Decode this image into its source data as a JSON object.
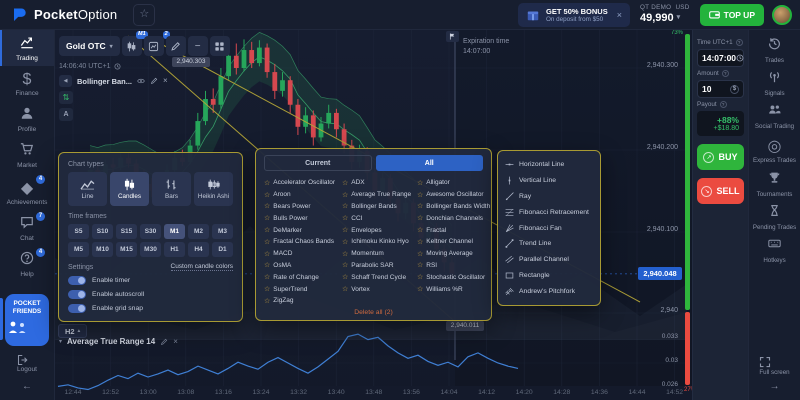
{
  "topbar": {
    "brand_bold": "Pocket",
    "brand_light": "Option",
    "bonus_title": "GET 50% BONUS",
    "bonus_subtitle": "On deposit from $50",
    "account_type": "QT Demo",
    "currency": "USD",
    "balance": "49,990",
    "topup_label": "TOP UP"
  },
  "sidebar_left": {
    "items": [
      {
        "label": "Trading",
        "icon": "trading",
        "active": true
      },
      {
        "label": "Finance",
        "icon": "finance"
      },
      {
        "label": "Profile",
        "icon": "profile"
      },
      {
        "label": "Market",
        "icon": "market"
      },
      {
        "label": "Achievements",
        "icon": "gem",
        "badge": "4"
      },
      {
        "label": "Chat",
        "icon": "chat",
        "badge": "7"
      },
      {
        "label": "Help",
        "icon": "help",
        "badge": "4"
      }
    ],
    "pocket_friends_line1": "POCKET",
    "pocket_friends_line2": "FRIENDS",
    "logout": "Logout"
  },
  "chart_toolbar": {
    "symbol": "Gold OTC",
    "timeframe_badge": "M1",
    "indicators_badge": "2",
    "clock": "14:06:40 UTC+1",
    "indicator_chip": "Bollinger Ban...",
    "auto_label": "A",
    "pane_interval": "H2"
  },
  "chart": {
    "price_labels": [
      "2,940.300",
      "2,940.200",
      "2,940.100",
      "2,940"
    ],
    "current_price": "2,940.048",
    "anchor_price": "2,940.303",
    "trendline_price": "2,940.011",
    "expiration_label": "Expiration time",
    "expiration_time": "14:07:00",
    "sentiment_buy": "73%",
    "sentiment_sell": "27%",
    "time_labels": [
      "12:44",
      "12:52",
      "13:00",
      "13:08",
      "13:16",
      "13:24",
      "13:32",
      "13:40",
      "13:48",
      "13:56",
      "14:04",
      "14:12",
      "14:20",
      "14:28",
      "14:36",
      "14:44",
      "14:52"
    ],
    "candles": [
      [
        0.165,
        0.175,
        0.18,
        0.16
      ],
      [
        0.175,
        0.17,
        0.182,
        0.165
      ],
      [
        0.17,
        0.182,
        0.188,
        0.168
      ],
      [
        0.182,
        0.178,
        0.19,
        0.172
      ],
      [
        0.178,
        0.19,
        0.196,
        0.175
      ],
      [
        0.19,
        0.183,
        0.196,
        0.178
      ],
      [
        0.183,
        0.17,
        0.188,
        0.163
      ],
      [
        0.17,
        0.158,
        0.175,
        0.15
      ],
      [
        0.158,
        0.15,
        0.165,
        0.142
      ],
      [
        0.15,
        0.162,
        0.168,
        0.147
      ],
      [
        0.162,
        0.175,
        0.182,
        0.158
      ],
      [
        0.175,
        0.19,
        0.198,
        0.172
      ],
      [
        0.19,
        0.185,
        0.2,
        0.18
      ],
      [
        0.185,
        0.205,
        0.212,
        0.182
      ],
      [
        0.205,
        0.235,
        0.245,
        0.2
      ],
      [
        0.235,
        0.262,
        0.272,
        0.23
      ],
      [
        0.262,
        0.255,
        0.275,
        0.245
      ],
      [
        0.255,
        0.29,
        0.3,
        0.25
      ],
      [
        0.29,
        0.315,
        0.325,
        0.285
      ],
      [
        0.315,
        0.3,
        0.33,
        0.292
      ],
      [
        0.3,
        0.322,
        0.335,
        0.296
      ],
      [
        0.322,
        0.306,
        0.332,
        0.3
      ],
      [
        0.306,
        0.325,
        0.334,
        0.302
      ],
      [
        0.325,
        0.295,
        0.33,
        0.288
      ],
      [
        0.295,
        0.272,
        0.305,
        0.262
      ],
      [
        0.272,
        0.285,
        0.295,
        0.265
      ],
      [
        0.285,
        0.255,
        0.29,
        0.245
      ],
      [
        0.255,
        0.228,
        0.262,
        0.218
      ],
      [
        0.228,
        0.242,
        0.252,
        0.22
      ],
      [
        0.242,
        0.215,
        0.248,
        0.205
      ],
      [
        0.215,
        0.232,
        0.24,
        0.21
      ],
      [
        0.232,
        0.245,
        0.255,
        0.226
      ],
      [
        0.245,
        0.225,
        0.25,
        0.215
      ],
      [
        0.225,
        0.205,
        0.232,
        0.196
      ],
      [
        0.205,
        0.185,
        0.212,
        0.176
      ],
      [
        0.185,
        0.198,
        0.206,
        0.178
      ],
      [
        0.198,
        0.172,
        0.203,
        0.163
      ],
      [
        0.172,
        0.15,
        0.178,
        0.14
      ],
      [
        0.15,
        0.165,
        0.172,
        0.144
      ],
      [
        0.165,
        0.14,
        0.17,
        0.13
      ],
      [
        0.14,
        0.122,
        0.146,
        0.112
      ],
      [
        0.122,
        0.135,
        0.142,
        0.115
      ],
      [
        0.135,
        0.11,
        0.14,
        0.1
      ],
      [
        0.11,
        0.092,
        0.116,
        0.082
      ],
      [
        0.092,
        0.105,
        0.112,
        0.085
      ],
      [
        0.105,
        0.078,
        0.11,
        0.068
      ],
      [
        0.078,
        0.062,
        0.084,
        0.05
      ],
      [
        0.062,
        0.048,
        0.07,
        0.04
      ]
    ]
  },
  "chart_types_panel": {
    "title": "Chart types",
    "types": [
      {
        "label": "Line",
        "icon": "line-chart"
      },
      {
        "label": "Candles",
        "icon": "candles",
        "active": true
      },
      {
        "label": "Bars",
        "icon": "bars-ohlc"
      },
      {
        "label": "Heikin Ashi",
        "icon": "heikin"
      }
    ],
    "timeframes_title": "Time frames",
    "timeframes": [
      "S5",
      "S10",
      "S15",
      "S30",
      "M1",
      "M2",
      "M3",
      "M5",
      "M10",
      "M15",
      "M30",
      "H1",
      "H4",
      "D1"
    ],
    "active_timeframe": "M1",
    "settings_title": "Settings",
    "custom_colors": "Custom candle colors",
    "toggles": [
      "Enable timer",
      "Enable autoscroll",
      "Enable grid snap"
    ]
  },
  "indicators_panel": {
    "tabs": [
      "Current",
      "All"
    ],
    "active_tab": "All",
    "columns": [
      [
        "Accelerator Oscillator",
        "Aroon",
        "Bears Power",
        "Bulls Power",
        "DeMarker",
        "Fractal Chaos Bands",
        "MACD",
        "OsMA",
        "Rate of Change",
        "SuperTrend",
        "ZigZag"
      ],
      [
        "ADX",
        "Average True Range",
        "Bollinger Bands",
        "CCI",
        "Envelopes",
        "Ichimoku Kinko Hyo",
        "Momentum",
        "Parabolic SAR",
        "Schaff Trend Cycle",
        "Vortex"
      ],
      [
        "Alligator",
        "Awesome Oscillator",
        "Bollinger Bands Width",
        "Donchian Channels",
        "Fractal",
        "Keltner Channel",
        "Moving Average",
        "RSI",
        "Stochastic Oscillator",
        "Williams %R"
      ]
    ],
    "delete_all": "Delete all (2)"
  },
  "drawing_panel": {
    "tools": [
      {
        "label": "Horizontal Line",
        "icon": "horizontal-line"
      },
      {
        "label": "Vertical Line",
        "icon": "vertical-line"
      },
      {
        "label": "Ray",
        "icon": "ray"
      },
      {
        "label": "Fibonacci Retracement",
        "icon": "fib-retracement"
      },
      {
        "label": "Fibonacci Fan",
        "icon": "fib-fan"
      },
      {
        "label": "Trend Line",
        "icon": "trend-line"
      },
      {
        "label": "Parallel Channel",
        "icon": "parallel-channel"
      },
      {
        "label": "Rectangle",
        "icon": "rectangle"
      },
      {
        "label": "Andrew's Pitchfork",
        "icon": "pitchfork"
      }
    ]
  },
  "atr_pane": {
    "title": "Average True Range 14",
    "axis_labels": [
      "0.033",
      "0.03",
      "0.026"
    ],
    "points": [
      0.027,
      0.0272,
      0.0268,
      0.0266,
      0.0271,
      0.0278,
      0.0284,
      0.028,
      0.0287,
      0.0282,
      0.0286,
      0.0291,
      0.0285,
      0.0289,
      0.0296,
      0.0291,
      0.0286,
      0.0293,
      0.0301,
      0.0296,
      0.0292,
      0.0301,
      0.0307,
      0.03,
      0.0293,
      0.0287,
      0.0295,
      0.0305,
      0.0315,
      0.0334,
      0.0337,
      0.033,
      0.0333,
      0.0322,
      0.0313,
      0.0306,
      0.031,
      0.0302,
      0.0297,
      0.0301,
      0.0295,
      0.0308,
      0.0313,
      0.0306,
      0.03,
      0.0296,
      0.0293
    ]
  },
  "trade": {
    "time_label": "Time UTC+1",
    "time_value": "14:07:00",
    "amount_label": "Amount",
    "amount_value": "10",
    "payout_label": "Payout",
    "payout_percent": "+88%",
    "payout_amount": "+$18.80",
    "buy": "BUY",
    "sell": "SELL"
  },
  "sidebar_right": {
    "items": [
      {
        "label": "Trades",
        "icon": "history"
      },
      {
        "label": "Signals",
        "icon": "signals"
      },
      {
        "label": "Social Trading",
        "icon": "social"
      },
      {
        "label": "Express Trades",
        "icon": "express"
      },
      {
        "label": "Tournaments",
        "icon": "trophy"
      },
      {
        "label": "Pending Trades",
        "icon": "hourglass"
      },
      {
        "label": "Hotkeys",
        "icon": "keyboard"
      }
    ],
    "fullscreen": "Full screen"
  },
  "colors": {
    "accent_blue": "#2f6bdb",
    "buy_green": "#2fb53c",
    "sell_red": "#eb4b40",
    "panel_border_yellow": "#a89a33",
    "star_yellow": "#c8a13e",
    "delete_orange": "#cf6a3f",
    "atr_line_blue": "#3f7fd4",
    "candle_up": "#26a65b",
    "candle_down": "#d6484f",
    "trend_yellow": "#b3a437"
  }
}
